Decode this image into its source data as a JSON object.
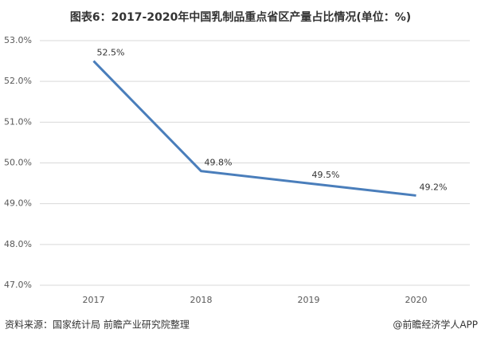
{
  "chart_data": {
    "type": "line",
    "title": "图表6：2017-2020年中国乳制品重点省区产量占比情况(单位：%)",
    "categories": [
      "2017",
      "2018",
      "2019",
      "2020"
    ],
    "series": [
      {
        "name": "产量占比",
        "color": "#4a7ebb",
        "values": [
          52.5,
          49.8,
          49.5,
          49.2
        ],
        "value_labels": [
          "52.5%",
          "49.8%",
          "49.5%",
          "49.2%"
        ]
      }
    ],
    "ylim": [
      47,
      53
    ],
    "yticks": [
      {
        "value": 47,
        "label": "47.0%"
      },
      {
        "value": 48,
        "label": "48.0%"
      },
      {
        "value": 49,
        "label": "49.0%"
      },
      {
        "value": 50,
        "label": "50.0%"
      },
      {
        "value": 51,
        "label": "51.0%"
      },
      {
        "value": 52,
        "label": "52.0%"
      },
      {
        "value": 53,
        "label": "53.0%"
      }
    ],
    "grid": true,
    "source": "资料来源：国家统计局 前瞻产业研究院整理",
    "credit": "@前瞻经济学人APP"
  }
}
